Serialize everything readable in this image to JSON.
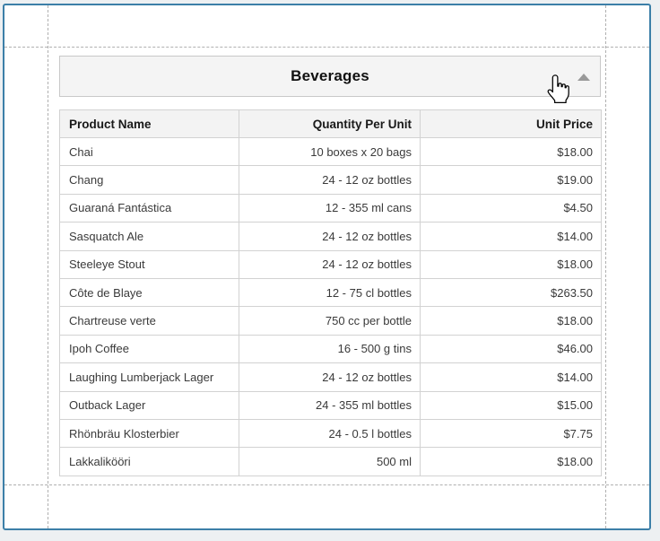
{
  "preview": {
    "group_header": {
      "title": "Beverages",
      "collapse_icon": "triangle-up",
      "collapsed": false
    },
    "table": {
      "columns": [
        {
          "label": "Product Name",
          "align": "left"
        },
        {
          "label": "Quantity Per Unit",
          "align": "right"
        },
        {
          "label": "Unit Price",
          "align": "right"
        }
      ],
      "rows": [
        [
          "Chai",
          "10 boxes x 20 bags",
          "$18.00"
        ],
        [
          "Chang",
          "24 - 12 oz bottles",
          "$19.00"
        ],
        [
          "Guaraná Fantástica",
          "12 - 355 ml cans",
          "$4.50"
        ],
        [
          "Sasquatch Ale",
          "24 - 12 oz bottles",
          "$14.00"
        ],
        [
          "Steeleye Stout",
          "24 - 12 oz bottles",
          "$18.00"
        ],
        [
          "Côte de Blaye",
          "12 - 75 cl bottles",
          "$263.50"
        ],
        [
          "Chartreuse verte",
          "750 cc per bottle",
          "$18.00"
        ],
        [
          "Ipoh Coffee",
          "16 - 500 g tins",
          "$46.00"
        ],
        [
          "Laughing Lumberjack Lager",
          "24 - 12 oz bottles",
          "$14.00"
        ],
        [
          "Outback Lager",
          "24 - 355 ml bottles",
          "$15.00"
        ],
        [
          "Rhönbräu Klosterbier",
          "24 - 0.5 l bottles",
          "$7.75"
        ],
        [
          "Lakkalikööri",
          "500 ml",
          "$18.00"
        ]
      ]
    },
    "cursor": "hand-pointer",
    "colors": {
      "page_border": "#3c7fa8",
      "band_background": "#f4f4f4",
      "band_border": "#c8c8c8",
      "table_border": "#d2d2d2",
      "header_row_background": "#f3f3f3",
      "text": "#3a3a3a",
      "margin_guide": "#b0b0b0",
      "canvas_background": "#edf0f2",
      "collapse_icon": "#999999"
    }
  }
}
